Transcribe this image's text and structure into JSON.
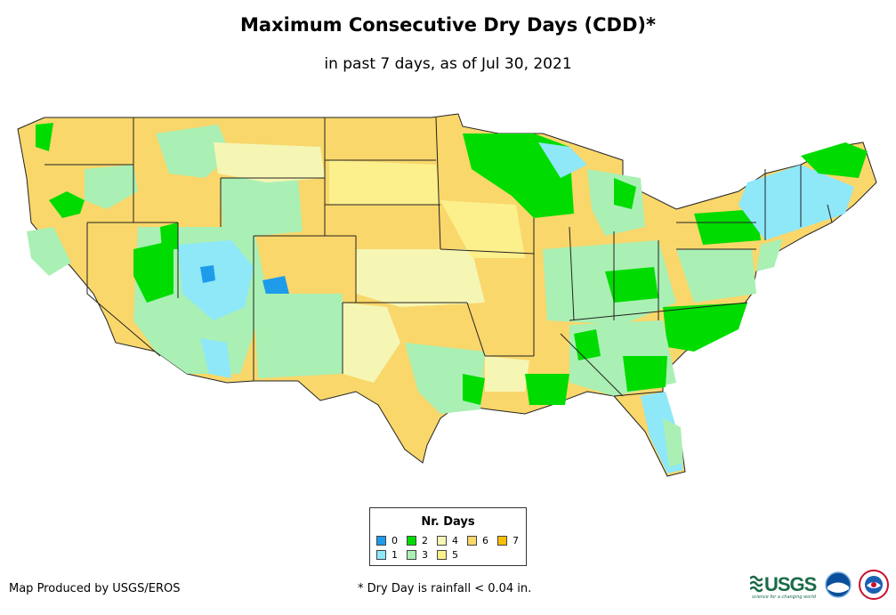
{
  "title": "Maximum Consecutive Dry Days (CDD)*",
  "subtitle": "in past 7 days, as of Jul 30, 2021",
  "legend": {
    "title": "Nr. Days",
    "items": [
      {
        "label": "0",
        "color": "#1e9be9"
      },
      {
        "label": "1",
        "color": "#8ee8f8"
      },
      {
        "label": "2",
        "color": "#00dc00"
      },
      {
        "label": "3",
        "color": "#aaf0b4"
      },
      {
        "label": "4",
        "color": "#f6f6b4"
      },
      {
        "label": "5",
        "color": "#fbf08c"
      },
      {
        "label": "6",
        "color": "#f9d76b"
      },
      {
        "label": "7",
        "color": "#f9be00"
      }
    ]
  },
  "credit": "Map Produced by USGS/EROS",
  "footnote": "* Dry Day is rainfall < 0.04 in.",
  "logos": {
    "usgs": "USGS",
    "usgs_tagline": "science for a changing world"
  }
}
